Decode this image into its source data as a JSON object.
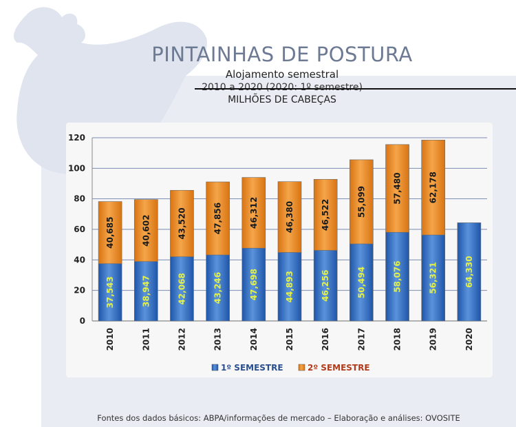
{
  "header": {
    "title": "PINTAINHAS DE POSTURA",
    "subtitle": "Alojamento semestral",
    "range": "2010 a 2020 (2020: 1º semestre)",
    "unit": "MILHÕES DE CABEÇAS"
  },
  "footer": {
    "source": "Fontes dos dados básicos: ABPA/informações de mercado – Elaboração e análises: OVOSITE"
  },
  "colors": {
    "first_semester": "#2f6bbf",
    "second_semester": "#e8891f",
    "first_label": "#e2f04a",
    "second_label": "#1a1a1a"
  },
  "chart_data": {
    "type": "bar",
    "stacked": true,
    "categories": [
      "2010",
      "2011",
      "2012",
      "2013",
      "2014",
      "2015",
      "2016",
      "2017",
      "2018",
      "2019",
      "2020"
    ],
    "series": [
      {
        "name": "1º SEMESTRE",
        "values": [
          37.543,
          38.947,
          42.068,
          43.246,
          47.698,
          44.893,
          46.256,
          50.494,
          58.076,
          56.321,
          64.33
        ],
        "labels": [
          "37,543",
          "38,947",
          "42,068",
          "43,246",
          "47,698",
          "44,893",
          "46,256",
          "50,494",
          "58,076",
          "56,321",
          "64,330"
        ]
      },
      {
        "name": "2º SEMESTRE",
        "values": [
          40.685,
          40.602,
          43.52,
          47.856,
          46.312,
          46.38,
          46.522,
          55.099,
          57.48,
          62.178,
          null
        ],
        "labels": [
          "40,685",
          "40,602",
          "43,520",
          "47,856",
          "46,312",
          "46,380",
          "46,522",
          "55,099",
          "57,480",
          "62,178",
          ""
        ]
      }
    ],
    "ylim": [
      0,
      120
    ],
    "yticks": [
      0,
      20,
      40,
      60,
      80,
      100,
      120
    ],
    "grid": true,
    "legend": "bottom"
  }
}
